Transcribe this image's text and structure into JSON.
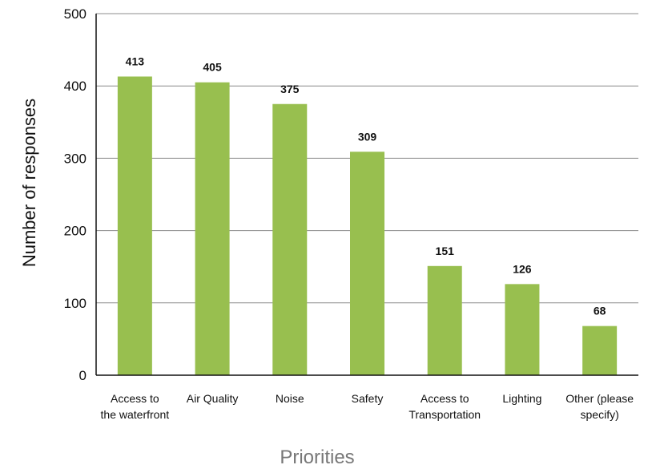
{
  "chart_data": {
    "type": "bar",
    "title": "",
    "xlabel": "Priorities",
    "ylabel": "Number of responses",
    "ylim": [
      0,
      500
    ],
    "yticks": [
      0,
      100,
      200,
      300,
      400,
      500
    ],
    "grid": true,
    "categories": [
      [
        "Access to",
        "the waterfront"
      ],
      [
        "Air Quality"
      ],
      [
        "Noise"
      ],
      [
        "Safety"
      ],
      [
        "Access to",
        "Transportation"
      ],
      [
        "Lighting"
      ],
      [
        "Other (please",
        "specify)"
      ]
    ],
    "values": [
      413,
      405,
      375,
      309,
      151,
      126,
      68
    ],
    "data_labels": [
      "413",
      "405",
      "375",
      "309",
      "151",
      "126",
      "68"
    ],
    "bar_color": "#98BF4F",
    "gridline_color": "#8c8c8c",
    "axis_color": "#111111"
  }
}
